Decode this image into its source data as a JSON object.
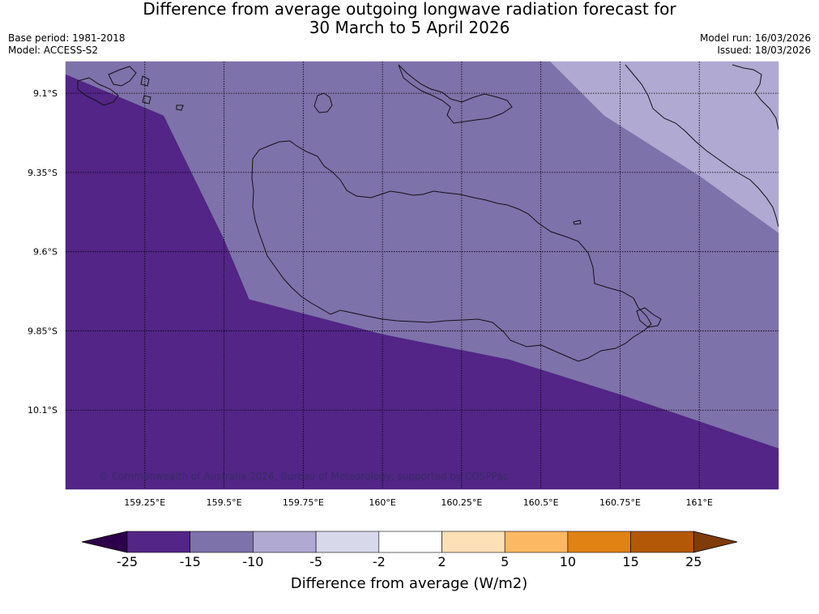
{
  "header": {
    "title_line1": "Difference from average outgoing longwave radiation forecast for",
    "title_line2": "30 March to 5 April 2026",
    "base_period": "Base period: 1981-2018",
    "model": "Model: ACCESS-S2",
    "model_run": "Model run: 16/03/2026",
    "issued": "Issued: 18/03/2026"
  },
  "chart_data": {
    "type": "heatmap",
    "title": "Difference from average outgoing longwave radiation forecast for 30 March to 5 April 2026",
    "map": {
      "lon_range": [
        159.0,
        161.25
      ],
      "lat_range": [
        -10.35,
        -9.0
      ],
      "lon_ticks": [
        159.25,
        159.5,
        159.75,
        160.0,
        160.25,
        160.5,
        160.75,
        161.0
      ],
      "lon_tick_labels": [
        "159.25°E",
        "159.5°E",
        "159.75°E",
        "160°E",
        "160.25°E",
        "160.5°E",
        "160.75°E",
        "161°E"
      ],
      "lat_ticks": [
        -9.1,
        -9.35,
        -9.6,
        -9.85,
        -10.1
      ],
      "lat_tick_labels": [
        "9.1°S",
        "9.35°S",
        "9.6°S",
        "9.85°S",
        "10.1°S"
      ],
      "grid": true,
      "regions": [
        {
          "category": "-25 to -15",
          "color": "#522586",
          "boundary": [
            [
              159.0,
              -9.04
            ],
            [
              159.31,
              -9.17
            ],
            [
              159.5,
              -9.56
            ],
            [
              159.58,
              -9.75
            ],
            [
              160.0,
              -9.86
            ],
            [
              160.4,
              -9.94
            ],
            [
              160.75,
              -10.05
            ],
            [
              161.25,
              -10.22
            ],
            [
              161.25,
              -10.35
            ],
            [
              159.0,
              -10.35
            ]
          ]
        },
        {
          "category": "-15 to -10",
          "color": "#7e72aa",
          "boundary": [
            [
              159.0,
              -9.0
            ],
            [
              160.53,
              -9.0
            ],
            [
              160.7,
              -9.17
            ],
            [
              161.0,
              -9.36
            ],
            [
              161.25,
              -9.54
            ],
            [
              161.25,
              -10.22
            ],
            [
              160.75,
              -10.05
            ],
            [
              160.4,
              -9.94
            ],
            [
              160.0,
              -9.86
            ],
            [
              159.58,
              -9.75
            ],
            [
              159.5,
              -9.56
            ],
            [
              159.31,
              -9.17
            ],
            [
              159.0,
              -9.04
            ]
          ]
        },
        {
          "category": "-10 to -5",
          "color": "#b0a9d1",
          "boundary": [
            [
              160.53,
              -9.0
            ],
            [
              161.25,
              -9.0
            ],
            [
              161.25,
              -9.54
            ],
            [
              161.0,
              -9.36
            ],
            [
              160.7,
              -9.17
            ]
          ]
        }
      ],
      "copyright": "© Commonwealth of Australia 2026, Bureau of Meteorology, supported by COSPPac"
    },
    "colorbar": {
      "label": "Difference from average (W/m2)",
      "boundaries": [
        "-25",
        "-15",
        "-10",
        "-5",
        "-2",
        "2",
        "5",
        "10",
        "15",
        "25"
      ],
      "colors": [
        "#522586",
        "#7e72aa",
        "#b0a9d1",
        "#d8d8eb",
        "#ffffff",
        "#fee0b6",
        "#fdb863",
        "#e08214",
        "#b35806"
      ],
      "extend_low_color": "#2d004b",
      "extend_high_color": "#7f3b08"
    }
  }
}
